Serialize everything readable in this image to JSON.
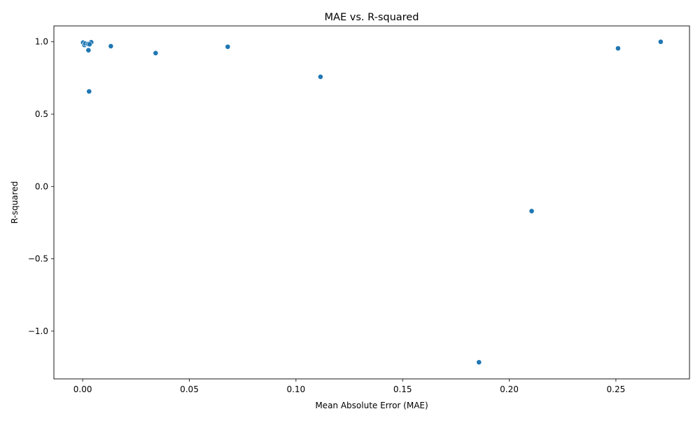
{
  "chart_data": {
    "type": "scatter",
    "title": "MAE vs. R-squared",
    "xlabel": "Mean Absolute Error (MAE)",
    "ylabel": "R-squared",
    "xlim": [
      -0.0135,
      0.2845
    ],
    "ylim": [
      -1.33,
      1.11
    ],
    "xticks": [
      {
        "value": 0.0,
        "label": "0.00"
      },
      {
        "value": 0.05,
        "label": "0.05"
      },
      {
        "value": 0.1,
        "label": "0.10"
      },
      {
        "value": 0.15,
        "label": "0.15"
      },
      {
        "value": 0.2,
        "label": "0.20"
      },
      {
        "value": 0.25,
        "label": "0.25"
      }
    ],
    "yticks": [
      {
        "value": 1.0,
        "label": "1.0"
      },
      {
        "value": 0.5,
        "label": "0.5"
      },
      {
        "value": 0.0,
        "label": "0.0"
      },
      {
        "value": -0.5,
        "label": "−0.5"
      },
      {
        "value": -1.0,
        "label": "−1.0"
      }
    ],
    "grid": false,
    "legend": null,
    "marker_color": "#1f77b4",
    "series": [
      {
        "points": [
          {
            "x": 0.0002,
            "y": 0.995
          },
          {
            "x": 0.0008,
            "y": 0.978
          },
          {
            "x": 0.0012,
            "y": 0.988
          },
          {
            "x": 0.0025,
            "y": 0.985
          },
          {
            "x": 0.004,
            "y": 0.997
          },
          {
            "x": 0.0032,
            "y": 0.983
          },
          {
            "x": 0.0027,
            "y": 0.942
          },
          {
            "x": 0.003,
            "y": 0.657
          },
          {
            "x": 0.0132,
            "y": 0.97
          },
          {
            "x": 0.0342,
            "y": 0.922
          },
          {
            "x": 0.068,
            "y": 0.966
          },
          {
            "x": 0.1115,
            "y": 0.758
          },
          {
            "x": 0.1858,
            "y": -1.215
          },
          {
            "x": 0.2105,
            "y": -0.17
          },
          {
            "x": 0.251,
            "y": 0.955
          },
          {
            "x": 0.271,
            "y": 1.0
          }
        ]
      }
    ]
  }
}
